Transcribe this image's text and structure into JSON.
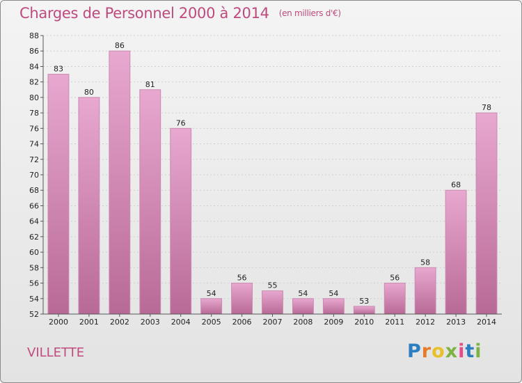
{
  "header": {
    "title": "Charges de Personnel 2000 à 2014",
    "subtitle": "(en milliers d'€)"
  },
  "footer": {
    "commune": "VILLETTE",
    "logo_letters": [
      "P",
      "r",
      "o",
      "x",
      "i",
      "t",
      "i"
    ]
  },
  "colors": {
    "title": "#c04a7e",
    "bar_top": "#e8a8d0",
    "bar_bottom": "#b86a96",
    "axis": "#555555",
    "grid": "#cfcfcf"
  },
  "chart_data": {
    "type": "bar",
    "title": "Charges de Personnel 2000 à 2014",
    "subtitle": "(en milliers d'€)",
    "categories": [
      "2000",
      "2001",
      "2002",
      "2003",
      "2004",
      "2005",
      "2006",
      "2007",
      "2008",
      "2009",
      "2010",
      "2011",
      "2012",
      "2013",
      "2014"
    ],
    "values": [
      83,
      80,
      86,
      81,
      76,
      54,
      56,
      55,
      54,
      54,
      53,
      56,
      58,
      68,
      78
    ],
    "ylim": [
      52,
      88
    ],
    "yticks": [
      52,
      54,
      56,
      58,
      60,
      62,
      64,
      66,
      68,
      70,
      72,
      74,
      76,
      78,
      80,
      82,
      84,
      86,
      88
    ],
    "xlabel": "",
    "ylabel": "",
    "grid": true
  }
}
